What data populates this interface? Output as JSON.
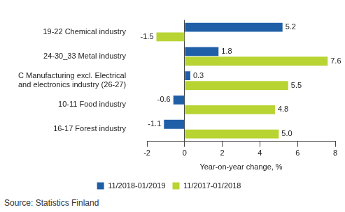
{
  "chart_data": {
    "type": "bar",
    "orientation": "horizontal",
    "categories": [
      "19-22 Chemical industry",
      "24-30_33 Metal industry",
      "C Manufacturing excl. Electrical and electronics industry (26-27)",
      "10-11 Food industry",
      "16-17 Forest industry"
    ],
    "series": [
      {
        "name": "11/2018-01/2019",
        "color": "#1f5fa8",
        "values": [
          5.2,
          1.8,
          0.3,
          -0.6,
          -1.1
        ],
        "value_labels": [
          "5.2",
          "1.8",
          "0.3",
          "-0.6",
          "-1.1"
        ]
      },
      {
        "name": "11/2017-01/2018",
        "color": "#b8d432",
        "values": [
          -1.5,
          7.6,
          5.5,
          4.8,
          5.0
        ],
        "value_labels": [
          "-1.5",
          "7.6",
          "5.5",
          "4.8",
          "5.0"
        ]
      }
    ],
    "x_label": "Year-on-year change, %",
    "xlim": [
      -2,
      8
    ],
    "xticks": [
      -2,
      0,
      2,
      4,
      6,
      8
    ],
    "grid": false,
    "legend": "bottom",
    "data_labels": true,
    "source": "Source: Statistics Finland"
  }
}
